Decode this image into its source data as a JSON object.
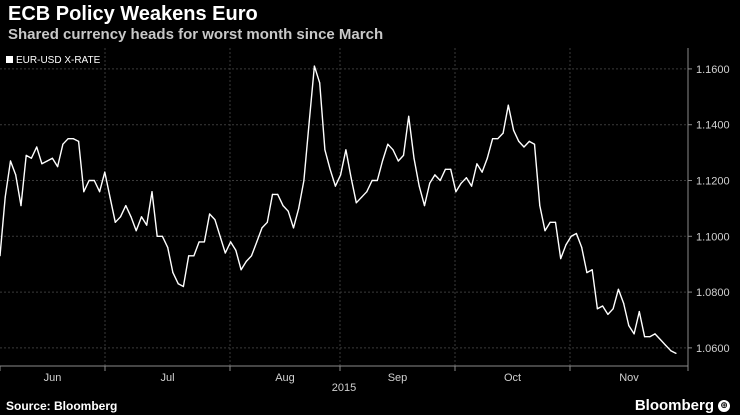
{
  "header": {
    "title": "ECB Policy Weakens Euro",
    "subtitle": "Shared currency heads for worst month since March"
  },
  "footer": {
    "source": "Source: Bloomberg",
    "brand": "Bloomberg",
    "brand_mark": "⊕"
  },
  "colors": {
    "background": "#000000",
    "line": "#ffffff",
    "grid": "#3a3a3a"
  },
  "chart_data": {
    "type": "line",
    "series": [
      {
        "name": "EUR-USD X-RATE",
        "values": [
          1.093,
          1.114,
          1.127,
          1.122,
          1.111,
          1.129,
          1.128,
          1.132,
          1.126,
          1.127,
          1.128,
          1.125,
          1.133,
          1.135,
          1.135,
          1.134,
          1.116,
          1.12,
          1.12,
          1.116,
          1.123,
          1.114,
          1.105,
          1.107,
          1.111,
          1.107,
          1.102,
          1.107,
          1.104,
          1.116,
          1.1,
          1.1,
          1.096,
          1.087,
          1.083,
          1.082,
          1.093,
          1.093,
          1.098,
          1.098,
          1.108,
          1.106,
          1.1,
          1.094,
          1.098,
          1.095,
          1.088,
          1.091,
          1.093,
          1.098,
          1.103,
          1.105,
          1.115,
          1.115,
          1.111,
          1.109,
          1.103,
          1.11,
          1.12,
          1.141,
          1.161,
          1.155,
          1.131,
          1.124,
          1.118,
          1.122,
          1.131,
          1.121,
          1.112,
          1.114,
          1.116,
          1.12,
          1.12,
          1.127,
          1.133,
          1.131,
          1.127,
          1.129,
          1.143,
          1.128,
          1.118,
          1.111,
          1.119,
          1.122,
          1.12,
          1.124,
          1.124,
          1.116,
          1.119,
          1.121,
          1.118,
          1.126,
          1.123,
          1.128,
          1.135,
          1.135,
          1.137,
          1.147,
          1.138,
          1.134,
          1.132,
          1.134,
          1.133,
          1.111,
          1.102,
          1.105,
          1.105,
          1.092,
          1.097,
          1.1,
          1.101,
          1.096,
          1.087,
          1.088,
          1.074,
          1.075,
          1.072,
          1.074,
          1.081,
          1.076,
          1.068,
          1.065,
          1.073,
          1.064,
          1.064,
          1.065,
          1.063,
          1.061,
          1.059,
          1.058
        ]
      }
    ],
    "x_tick_labels": [
      "Jun",
      "Jul",
      "Aug",
      "Sep",
      "Oct",
      "Nov"
    ],
    "year_label": "2015",
    "y_tick_labels": [
      "1.1600",
      "1.1400",
      "1.1200",
      "1.1000",
      "1.0800",
      "1.0600"
    ],
    "y_ticks": [
      1.16,
      1.14,
      1.12,
      1.1,
      1.08,
      1.06
    ],
    "ylim": [
      1.0535,
      1.1675
    ],
    "grid": true,
    "legend_position": "top-left"
  }
}
